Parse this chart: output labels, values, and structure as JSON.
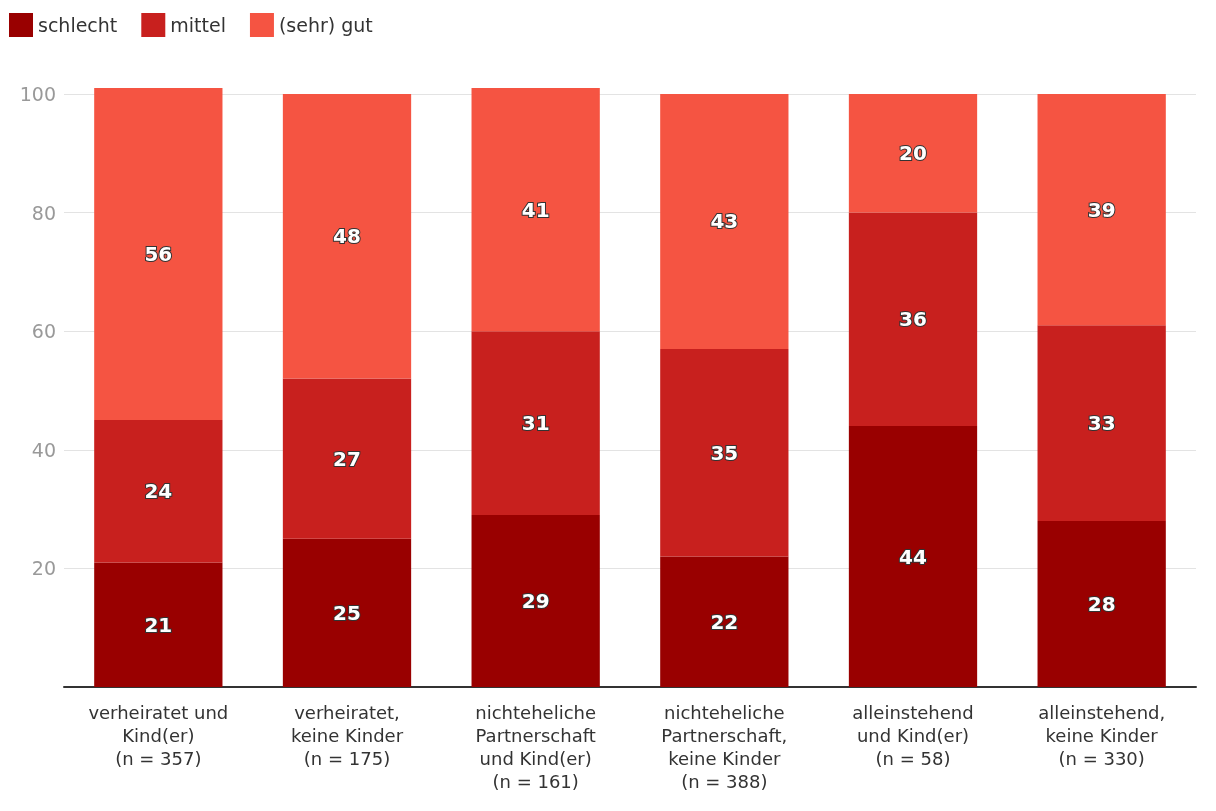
{
  "chart_data": {
    "type": "bar",
    "stacked": true,
    "categories": [
      "verheiratet und\nKind(er)\n(n = 357)",
      "verheiratet,\nkeine Kinder\n(n = 175)",
      "nichteheliche\nPartnerschaft\nund Kind(er)\n(n = 161)",
      "nichteheliche\nPartnerschaft,\nkeine Kinder\n(n = 388)",
      "alleinstehend\nund Kind(er)\n(n = 58)",
      "alleinstehend,\nkeine Kinder\n(n = 330)"
    ],
    "series": [
      {
        "name": "schlecht",
        "color": "#990000",
        "values": [
          21,
          25,
          29,
          22,
          44,
          28
        ]
      },
      {
        "name": "mittel",
        "color": "#c8201e",
        "values": [
          24,
          27,
          31,
          35,
          36,
          33
        ]
      },
      {
        "name": "(sehr) gut",
        "color": "#f55442",
        "values": [
          56,
          48,
          41,
          43,
          20,
          39
        ]
      }
    ],
    "ylim": [
      0,
      101
    ],
    "yticks": [
      {
        "value": 0,
        "label": null
      },
      20,
      40,
      60,
      80,
      100
    ],
    "grid": "y",
    "legend": "top left",
    "data_labels": true
  }
}
